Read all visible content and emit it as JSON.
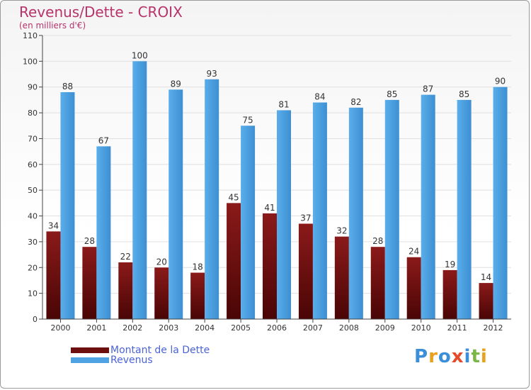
{
  "header": {
    "title": "Revenus/Dette - CROIX",
    "subtitle": "(en milliers d'€)"
  },
  "logo": {
    "text": "Proxiti",
    "colors": [
      "#3a8fd8",
      "#e8a11c",
      "#3a8fd8",
      "#e44b2a",
      "#3a8fd8",
      "#7ab648",
      "#e8a11c"
    ]
  },
  "colors": {
    "dette": "#7a1010",
    "revenus": "#4fa3e3",
    "title": "#b7336a",
    "legend_text": "#4a63d8"
  },
  "chart_data": {
    "type": "bar",
    "title": "Revenus/Dette - CROIX",
    "subtitle": "(en milliers d'€)",
    "categories": [
      "2000",
      "2001",
      "2002",
      "2003",
      "2004",
      "2005",
      "2006",
      "2007",
      "2008",
      "2009",
      "2010",
      "2011",
      "2012"
    ],
    "series": [
      {
        "name": "Montant de la Dette",
        "values": [
          34,
          28,
          22,
          20,
          18,
          45,
          41,
          37,
          32,
          28,
          24,
          19,
          14
        ]
      },
      {
        "name": "Revenus",
        "values": [
          88,
          67,
          100,
          89,
          93,
          75,
          81,
          84,
          82,
          85,
          87,
          85,
          90
        ]
      }
    ],
    "ylim": [
      0,
      110
    ],
    "yticks": [
      0,
      10,
      20,
      30,
      40,
      50,
      60,
      70,
      80,
      90,
      100,
      110
    ],
    "grid": true,
    "legend": "bottom-left",
    "xlabel": "",
    "ylabel": ""
  }
}
